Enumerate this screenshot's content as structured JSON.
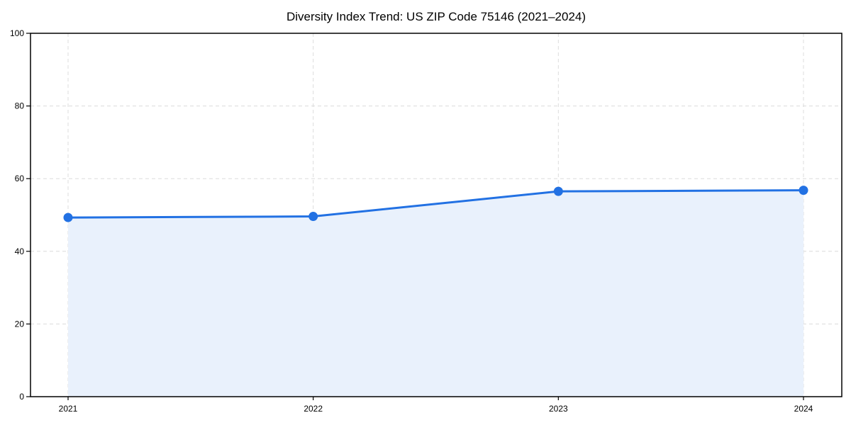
{
  "chart_data": {
    "type": "area",
    "title": "Diversity Index Trend: US ZIP Code 75146 (2021–2024)",
    "categories": [
      "2021",
      "2022",
      "2023",
      "2024"
    ],
    "series": [
      {
        "name": "Diversity Index",
        "values": [
          49.3,
          49.6,
          56.5,
          56.8
        ]
      }
    ],
    "xlabel": "",
    "ylabel": "",
    "ylim": [
      0,
      100
    ],
    "yticks": [
      0,
      20,
      40,
      60,
      80,
      100
    ],
    "grid": true,
    "grid_style": "dashed",
    "legend": "none",
    "marker": "circle",
    "colors": {
      "line": "#2271e3",
      "marker": "#2271e3",
      "fill": "#e9f1fc",
      "grid": "#dcdcdc",
      "axis": "#000000",
      "text": "#000000",
      "background": "#ffffff"
    }
  }
}
